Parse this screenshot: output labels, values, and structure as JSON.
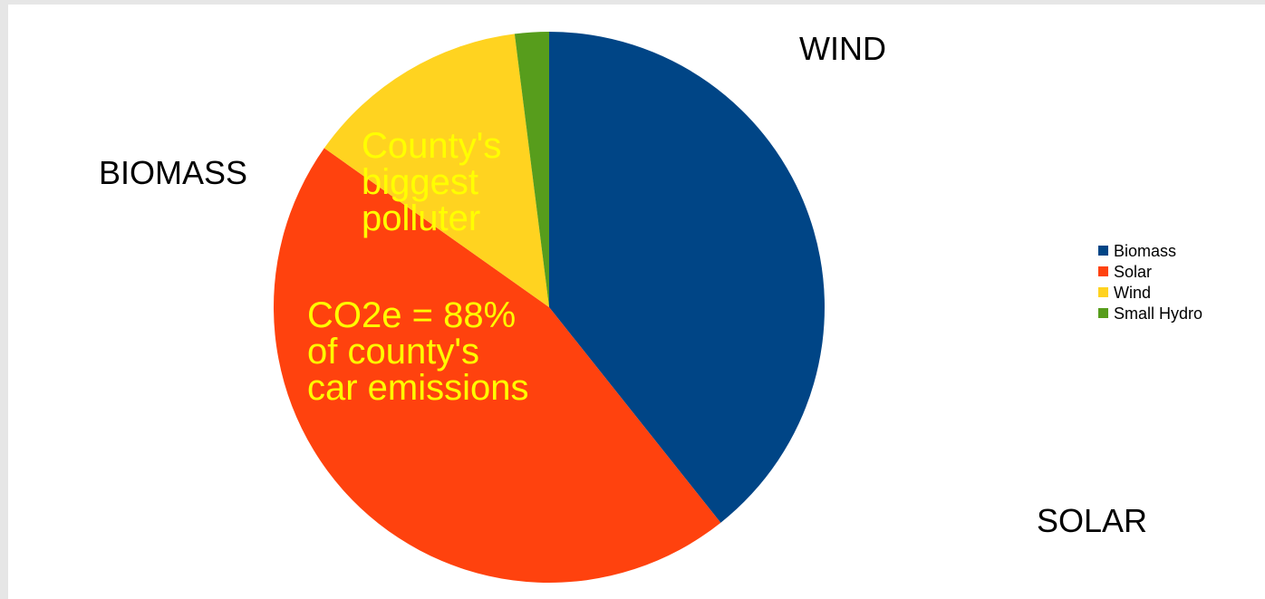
{
  "chart_data": {
    "type": "pie",
    "categories": [
      "Biomass",
      "Solar",
      "Wind",
      "Small Hydro"
    ],
    "values": [
      39.3,
      45.5,
      13.2,
      2.0
    ],
    "colors": [
      "#004586",
      "#ff420e",
      "#ffd320",
      "#579d1c"
    ],
    "legend": "right",
    "title": ""
  },
  "labels": {
    "wind": "WIND",
    "biomass": "BIOMASS",
    "solar": "SOLAR"
  },
  "annotations": {
    "polluter": "County's\nbiggest\npolluter",
    "co2": "CO2e = 88%\nof county's\ncar emissions",
    "color": "#ffff00"
  },
  "legend": {
    "items": [
      {
        "label": "Biomass",
        "color": "#004586"
      },
      {
        "label": "Solar",
        "color": "#ff420e"
      },
      {
        "label": "Wind",
        "color": "#ffd320"
      },
      {
        "label": "Small Hydro",
        "color": "#579d1c"
      }
    ]
  }
}
